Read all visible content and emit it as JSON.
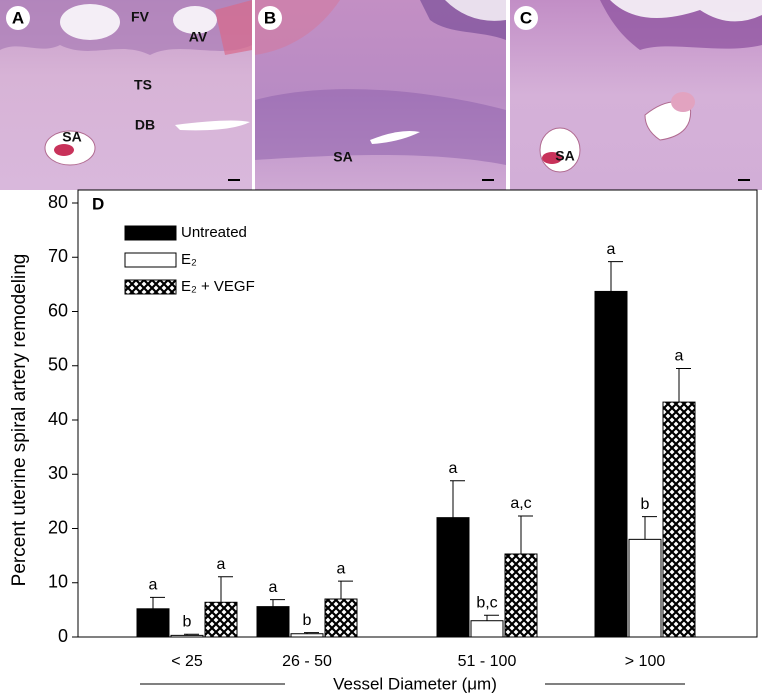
{
  "panels": [
    {
      "label": "A",
      "tissue_labels": [
        "FV",
        "AV",
        "TS",
        "DB",
        "SA"
      ]
    },
    {
      "label": "B",
      "tissue_labels": [
        "SA"
      ]
    },
    {
      "label": "C",
      "tissue_labels": [
        "SA"
      ]
    }
  ],
  "chart_data": {
    "type": "bar",
    "panel_label": "D",
    "ylabel": "Percent uterine spiral artery remodeling",
    "xlabel": "Vessel Diameter (μm)",
    "categories": [
      "< 25",
      "26 - 50",
      "51 - 100",
      "> 100"
    ],
    "series": [
      {
        "name": "Untreated",
        "color": "#000000",
        "values": [
          5.2,
          5.6,
          22,
          63.7
        ],
        "errors": [
          2.1,
          1.3,
          6.8,
          5.5
        ],
        "letters": [
          "a",
          "a",
          "a",
          "a"
        ]
      },
      {
        "name": "E₂",
        "color": "#ffffff",
        "values": [
          0.3,
          0.6,
          3,
          18
        ],
        "errors": [
          0.2,
          0.2,
          1,
          4.2
        ],
        "letters": [
          "b",
          "b",
          "b,c",
          "b"
        ]
      },
      {
        "name": "E₂ + VEGF",
        "color": "crosshatch",
        "values": [
          6.4,
          7,
          15.3,
          43.3
        ],
        "errors": [
          4.7,
          3.3,
          7,
          6.2
        ],
        "letters": [
          "a",
          "a",
          "a,c",
          "a"
        ]
      }
    ],
    "ylim": [
      0,
      80
    ],
    "yticks": [
      0,
      10,
      20,
      30,
      40,
      50,
      60,
      70,
      80
    ],
    "legend": "upper left"
  }
}
